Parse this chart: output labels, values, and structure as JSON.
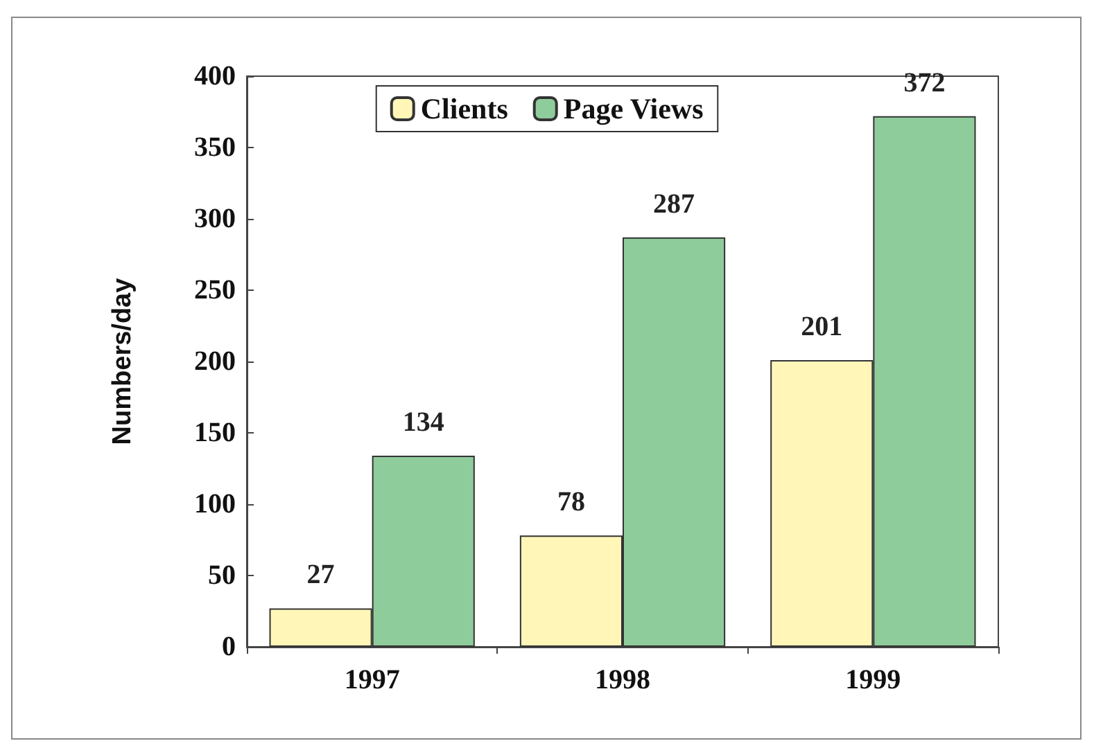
{
  "chart_data": {
    "type": "bar",
    "ylabel": "Numbers/day",
    "categories": [
      "1997",
      "1998",
      "1999"
    ],
    "series": [
      {
        "name": "Clients",
        "color": "#fff6b8",
        "values": [
          27,
          78,
          201
        ]
      },
      {
        "name": "Page Views",
        "color": "#8fcc9c",
        "values": [
          134,
          287,
          372
        ]
      }
    ],
    "ylim": [
      0,
      400
    ],
    "yticks": [
      0,
      50,
      100,
      150,
      200,
      250,
      300,
      350,
      400
    ],
    "grid": false,
    "legend": "top",
    "data_labels": true
  }
}
